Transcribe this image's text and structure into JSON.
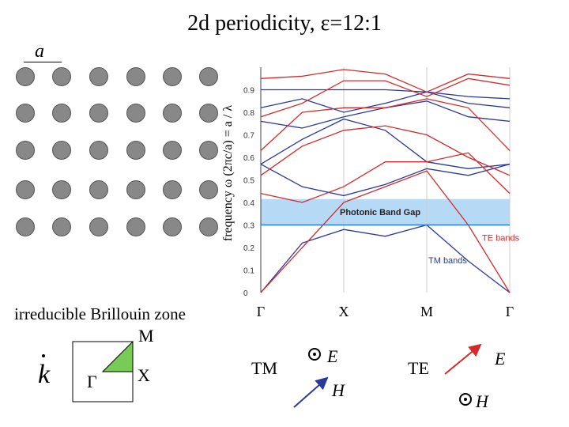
{
  "title": "2d periodicity, ε=12:1",
  "lattice": {
    "label": "a"
  },
  "chart_data": {
    "type": "line",
    "title": "2d periodicity, ε=12:1",
    "ylabel": "frequency ω (2πc/a) = a / λ",
    "xlabel": "",
    "x_ticks": [
      "Γ",
      "X",
      "M",
      "Γ"
    ],
    "y_ticks": [
      "0",
      "0.1",
      "0.2",
      "0.3",
      "0.4",
      "0.5",
      "0.6",
      "0.7",
      "0.8",
      "0.9"
    ],
    "ylim": [
      0,
      1.0
    ],
    "band_gap": {
      "label": "Photonic Band Gap",
      "range": [
        0.3,
        0.415
      ]
    },
    "x": [
      0,
      0.5,
      1,
      1.5,
      2,
      2.5,
      3
    ],
    "series": [
      {
        "name": "TM bands",
        "color": "#2b3a9a",
        "bands": [
          [
            0.0,
            0.22,
            0.28,
            0.25,
            0.3,
            0.14,
            0.0
          ],
          [
            0.57,
            0.47,
            0.43,
            0.48,
            0.55,
            0.52,
            0.57
          ],
          [
            0.57,
            0.68,
            0.77,
            0.72,
            0.58,
            0.55,
            0.57
          ],
          [
            0.76,
            0.73,
            0.78,
            0.82,
            0.85,
            0.78,
            0.76
          ],
          [
            0.82,
            0.86,
            0.8,
            0.84,
            0.89,
            0.84,
            0.82
          ],
          [
            0.9,
            0.9,
            0.9,
            0.9,
            0.89,
            0.87,
            0.86
          ]
        ]
      },
      {
        "name": "TE bands",
        "color": "#d62a2a",
        "bands": [
          [
            0.0,
            0.2,
            0.4,
            0.47,
            0.54,
            0.3,
            0.0
          ],
          [
            0.44,
            0.4,
            0.47,
            0.58,
            0.58,
            0.62,
            0.44
          ],
          [
            0.52,
            0.65,
            0.72,
            0.74,
            0.7,
            0.6,
            0.52
          ],
          [
            0.63,
            0.8,
            0.82,
            0.82,
            0.86,
            0.82,
            0.63
          ],
          [
            0.78,
            0.84,
            0.94,
            0.94,
            0.87,
            0.95,
            0.92
          ],
          [
            0.95,
            0.96,
            0.99,
            0.97,
            0.89,
            0.97,
            0.95
          ]
        ]
      }
    ],
    "annotations": [
      "Photonic Band Gap",
      "TE bands",
      "TM bands"
    ]
  },
  "brillouin": {
    "title": "irreducible Brillouin zone",
    "m": "M",
    "gamma": "Γ",
    "x": "X",
    "k": "k"
  },
  "polarization": {
    "tm": {
      "label": "TM",
      "e": "E",
      "h": "H"
    },
    "te": {
      "label": "TE",
      "e": "E",
      "h": "H"
    }
  },
  "colors": {
    "tm": "#2b3a9a",
    "te": "#d62a2a",
    "gap": "#a9d3f5",
    "rod": "#888888",
    "zone": "#77cc55"
  }
}
